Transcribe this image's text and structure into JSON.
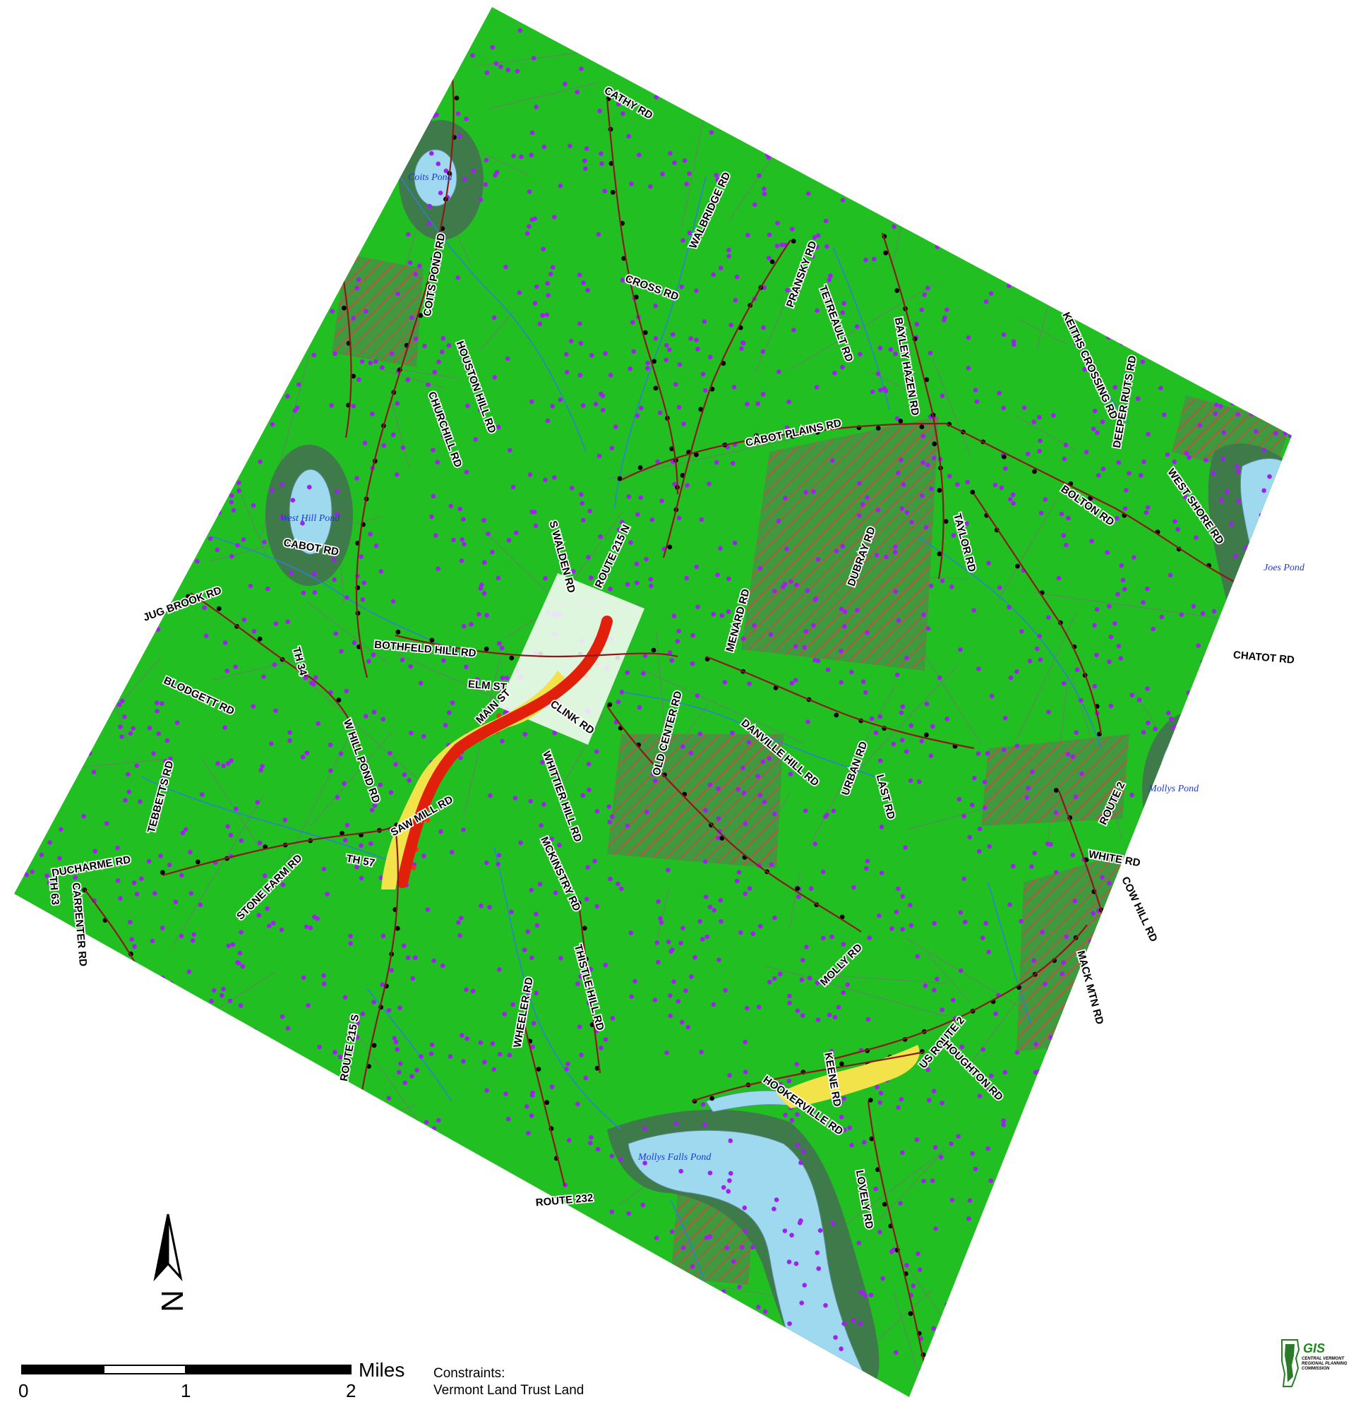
{
  "colors": {
    "land": "#22bf22",
    "parcel_line": "#5b8a5b",
    "water": "#9fd9f0",
    "water_label": "#1e3ad6",
    "wetland": "#3f7a4a",
    "hatch": "#b5593a",
    "point_purple": "#a020f0",
    "point_black": "#000000",
    "road": "#8b1a1a",
    "stream": "#2d7fd6",
    "village_white": "#ffffff",
    "village_yellow": "#f2e34a",
    "village_red": "#e0200a"
  },
  "ponds": [
    {
      "name": "Coits Pond"
    },
    {
      "name": "West Hill Pond"
    },
    {
      "name": "Joes Pond"
    },
    {
      "name": "Mollys Pond"
    },
    {
      "name": "Mollys Falls Pond"
    }
  ],
  "roads": [
    "CATHY RD",
    "COITS POND RD",
    "WALBRIDGE RD",
    "CROSS RD",
    "PRANSKY RD",
    "TETREAULT RD",
    "BAYLEY HAZEN RD",
    "HOUSTON HILL RD",
    "CHURCHILL RD",
    "CABOT PLAINS RD",
    "KEITHS CROSSING RD",
    "DEEPER RUTS RD",
    "WEST SHORE RD",
    "BOLTON RD",
    "S WALDEN RD",
    "ROUTE 215 N",
    "MENARD RD",
    "DUBRAY RD",
    "TAYLOR RD",
    "CABOT RD",
    "JUG BROOK RD",
    "TH 34",
    "BOTHFELD HILL RD",
    "BLODGETT RD",
    "ELM ST",
    "MAIN ST",
    "CLINK RD",
    "OLD CENTER RD",
    "DANVILLE HILL RD",
    "URBAN RD",
    "CHATOT RD",
    "W HILL POND RD",
    "WHITTIER HILL RD",
    "SAW MILL RD",
    "TEBBETTS RD",
    "MCKINSTRY RD",
    "LAST RD",
    "ROUTE 2",
    "WHITE RD",
    "COW HILL RD",
    "DUCHARME RD",
    "TH 57",
    "STONE FARM RD",
    "TH 63",
    "CARPENTER RD",
    "MOLLY RD",
    "MACK MTN RD",
    "ROUTE 215 S",
    "WHEELER RD",
    "THISTLE HILL RD",
    "KEENE RD",
    "US ROUTE 2",
    "HOUGHTON RD",
    "HOOKERVILLE RD",
    "LOVELY RD",
    "ROUTE 232"
  ],
  "scale_bar": {
    "unit": "Miles",
    "ticks": [
      "0",
      "1",
      "2"
    ]
  },
  "legend": {
    "heading": "Constraints:",
    "item": "Vermont Land Trust Land"
  },
  "north_arrow": {
    "label": "N"
  },
  "logo": {
    "title": "GIS",
    "org": "CENTRAL VERMONT REGIONAL PLANNING COMMISSION"
  }
}
